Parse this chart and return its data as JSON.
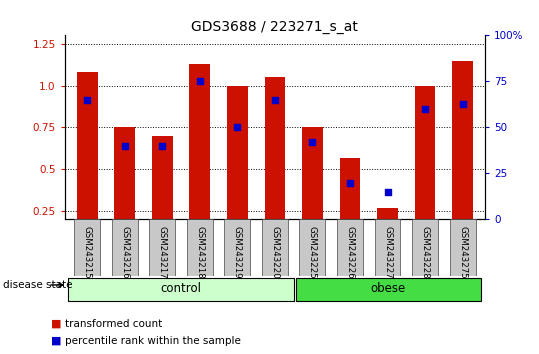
{
  "title": "GDS3688 / 223271_s_at",
  "samples": [
    "GSM243215",
    "GSM243216",
    "GSM243217",
    "GSM243218",
    "GSM243219",
    "GSM243220",
    "GSM243225",
    "GSM243226",
    "GSM243227",
    "GSM243228",
    "GSM243275"
  ],
  "red_values": [
    1.08,
    0.75,
    0.7,
    1.13,
    1.0,
    1.05,
    0.75,
    0.57,
    0.27,
    1.0,
    1.15
  ],
  "blue_values": [
    65,
    40,
    40,
    75,
    50,
    65,
    42,
    20,
    15,
    60,
    63
  ],
  "ylim_left": [
    0.2,
    1.3
  ],
  "ylim_right": [
    0,
    100
  ],
  "yticks_left": [
    0.25,
    0.5,
    0.75,
    1.0,
    1.25
  ],
  "yticks_right": [
    0,
    25,
    50,
    75,
    100
  ],
  "ytick_labels_right": [
    "0",
    "25",
    "50",
    "75",
    "100%"
  ],
  "n_control": 6,
  "n_obese": 5,
  "bar_color": "#cc1100",
  "dot_color": "#0000cc",
  "control_color": "#ccffcc",
  "obese_color": "#44dd44",
  "title_fontsize": 10,
  "tick_fontsize": 7.5,
  "label_fontsize": 8,
  "bar_width": 0.55,
  "legend_red_label": "transformed count",
  "legend_blue_label": "percentile rank within the sample",
  "disease_state_label": "disease state",
  "control_label": "control",
  "obese_label": "obese"
}
